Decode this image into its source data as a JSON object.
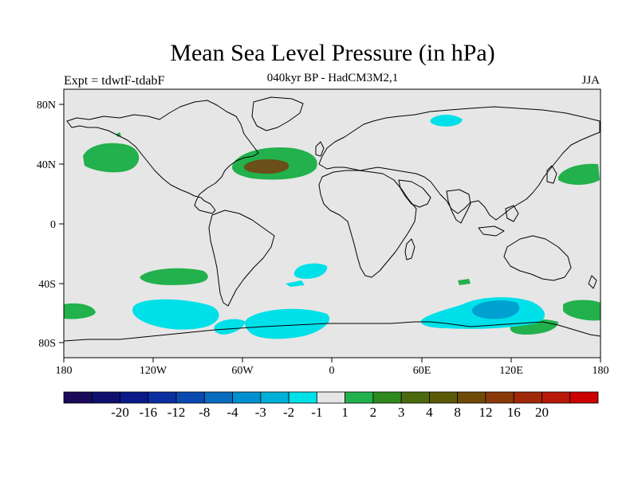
{
  "title": "Mean Sea Level Pressure (in hPa)",
  "subtitle": "040kyr BP - HadCM3M2,1",
  "expt_label": "Expt = tdwtF-tdabF",
  "season": "JJA",
  "lat_ticks": [
    "80N",
    "40N",
    "0",
    "40S",
    "80S"
  ],
  "lon_ticks": [
    "180",
    "120W",
    "60W",
    "0",
    "60E",
    "120E",
    "180"
  ],
  "colors": {
    "background_field": "#e6e6e6",
    "pos_1_2": "#22b14c",
    "pos_2_3": "#8a5a10",
    "neg_1_2": "#00e0e8",
    "neg_2_3": "#00a0d0",
    "coast": "#000000"
  },
  "colorbar": {
    "colors": [
      "#1a0a5a",
      "#10106e",
      "#0a1a8a",
      "#0a2fa0",
      "#0a4ab0",
      "#0a6cc0",
      "#0090d0",
      "#00b0d8",
      "#00e0e8",
      "#e6e6e6",
      "#22b14c",
      "#2e8a1e",
      "#4a6a10",
      "#5a5a08",
      "#704a08",
      "#8a3a08",
      "#a02808",
      "#b81808",
      "#cc0000"
    ],
    "labels": [
      "-20",
      "-16",
      "-12",
      "-8",
      "-4",
      "-3",
      "-2",
      "-1",
      "1",
      "2",
      "3",
      "4",
      "8",
      "12",
      "16",
      "20"
    ]
  }
}
